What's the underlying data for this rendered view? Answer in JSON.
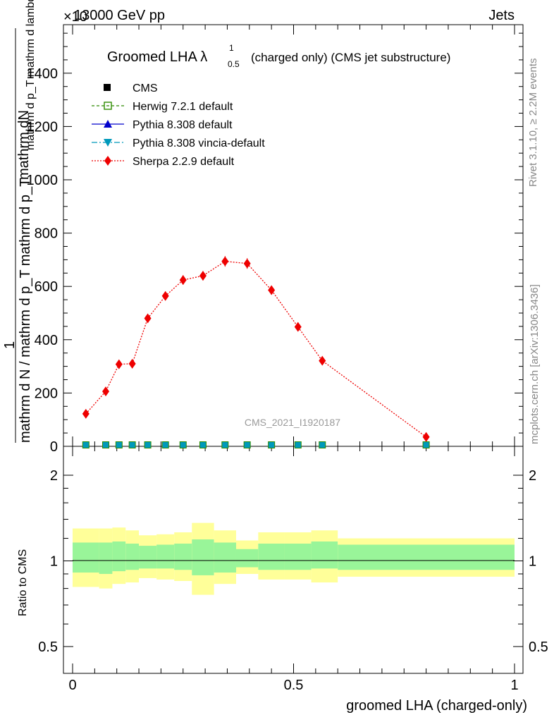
{
  "header": {
    "energy": "13000 GeV pp",
    "category": "Jets",
    "exponent_label": "×10"
  },
  "rivet_label": "Rivet 3.1.10, ≥ 2.2M events",
  "mcplots_label": "mcplots.cern.ch [arXiv:1306.3436]",
  "analysis_id": "CMS_2021_I1920187",
  "colors": {
    "cms": "#000000",
    "herwig": "#2e8b00",
    "pythia": "#0000cc",
    "vincia": "#0099bb",
    "sherpa": "#ee0000",
    "band_inner": "#99f599",
    "band_outer": "#ffff99"
  },
  "chart_data": [
    {
      "type": "line",
      "title": "Groomed LHA λ",
      "title_sup": "1",
      "title_sub": "0.5",
      "title_suffix": "(charged only) (CMS jet substructure)",
      "ylabel_numerator": "mathrm dN",
      "ylabel_frac_top": "1",
      "ylabel_top_line": "mathrm d p_T mathrm d lambda",
      "ylabel_bottom_line": "mathrm d N / mathrm d p_T mathrm d p_T",
      "ylabel_sub_T": "T",
      "ylim": [
        0,
        1580
      ],
      "xlim": [
        -0.02,
        1.02
      ],
      "y_ticks": [
        0,
        200,
        400,
        600,
        800,
        1000,
        1200,
        1400
      ],
      "y_tick_labels": [
        "0",
        "200",
        "400",
        "600",
        "800",
        "1000",
        "1200",
        "1400"
      ],
      "legend": [
        {
          "name": "CMS",
          "marker": "square"
        },
        {
          "name": "Herwig 7.2.1 default",
          "marker": "open-square"
        },
        {
          "name": "Pythia 8.308 default",
          "marker": "triangle-up"
        },
        {
          "name": "Pythia 8.308 vincia-default",
          "marker": "triangle-down"
        },
        {
          "name": "Sherpa 2.2.9 default",
          "marker": "diamond"
        }
      ],
      "series": [
        {
          "name": "Sherpa 2.2.9 default",
          "x": [
            0.03,
            0.075,
            0.105,
            0.135,
            0.17,
            0.21,
            0.25,
            0.295,
            0.345,
            0.395,
            0.45,
            0.51,
            0.565,
            0.8
          ],
          "y": [
            122,
            206,
            308,
            310,
            480,
            564,
            624,
            640,
            694,
            686,
            586,
            448,
            321,
            35
          ],
          "err": [
            10,
            14,
            14,
            16,
            16,
            16,
            18,
            18,
            20,
            20,
            16,
            14,
            12,
            8
          ]
        },
        {
          "name": "CMS",
          "x": [
            0.03,
            0.075,
            0.105,
            0.135,
            0.17,
            0.21,
            0.25,
            0.295,
            0.345,
            0.395,
            0.45,
            0.51,
            0.565,
            0.8
          ],
          "y": [
            0,
            0,
            0,
            0,
            0,
            0,
            0,
            0,
            0,
            0,
            0,
            0,
            0,
            0
          ]
        }
      ]
    },
    {
      "type": "area",
      "ylabel": "Ratio to CMS",
      "xlabel": "groomed LHA (charged-only)",
      "ylim_log": [
        0.4,
        2.3
      ],
      "y_ticks": [
        0.5,
        1,
        2
      ],
      "y_tick_labels": [
        "0.5",
        "1",
        "2"
      ],
      "x_ticks": [
        0,
        0.5,
        1
      ],
      "x_tick_labels": [
        "0",
        "0.5",
        "1"
      ],
      "bins": [
        0,
        0.06,
        0.09,
        0.12,
        0.15,
        0.19,
        0.23,
        0.27,
        0.32,
        0.37,
        0.42,
        0.48,
        0.54,
        0.6,
        1.0
      ],
      "inner_hi": [
        1.16,
        1.16,
        1.17,
        1.15,
        1.13,
        1.14,
        1.15,
        1.19,
        1.16,
        1.1,
        1.15,
        1.15,
        1.17,
        1.14
      ],
      "inner_lo": [
        0.91,
        0.9,
        0.92,
        0.93,
        0.94,
        0.94,
        0.93,
        0.89,
        0.91,
        0.95,
        0.93,
        0.93,
        0.94,
        0.93
      ],
      "outer_hi": [
        1.3,
        1.3,
        1.31,
        1.28,
        1.23,
        1.24,
        1.26,
        1.36,
        1.28,
        1.18,
        1.26,
        1.26,
        1.28,
        1.2
      ],
      "outer_lo": [
        0.81,
        0.8,
        0.83,
        0.84,
        0.87,
        0.86,
        0.85,
        0.76,
        0.83,
        0.9,
        0.86,
        0.86,
        0.84,
        0.88
      ]
    }
  ]
}
